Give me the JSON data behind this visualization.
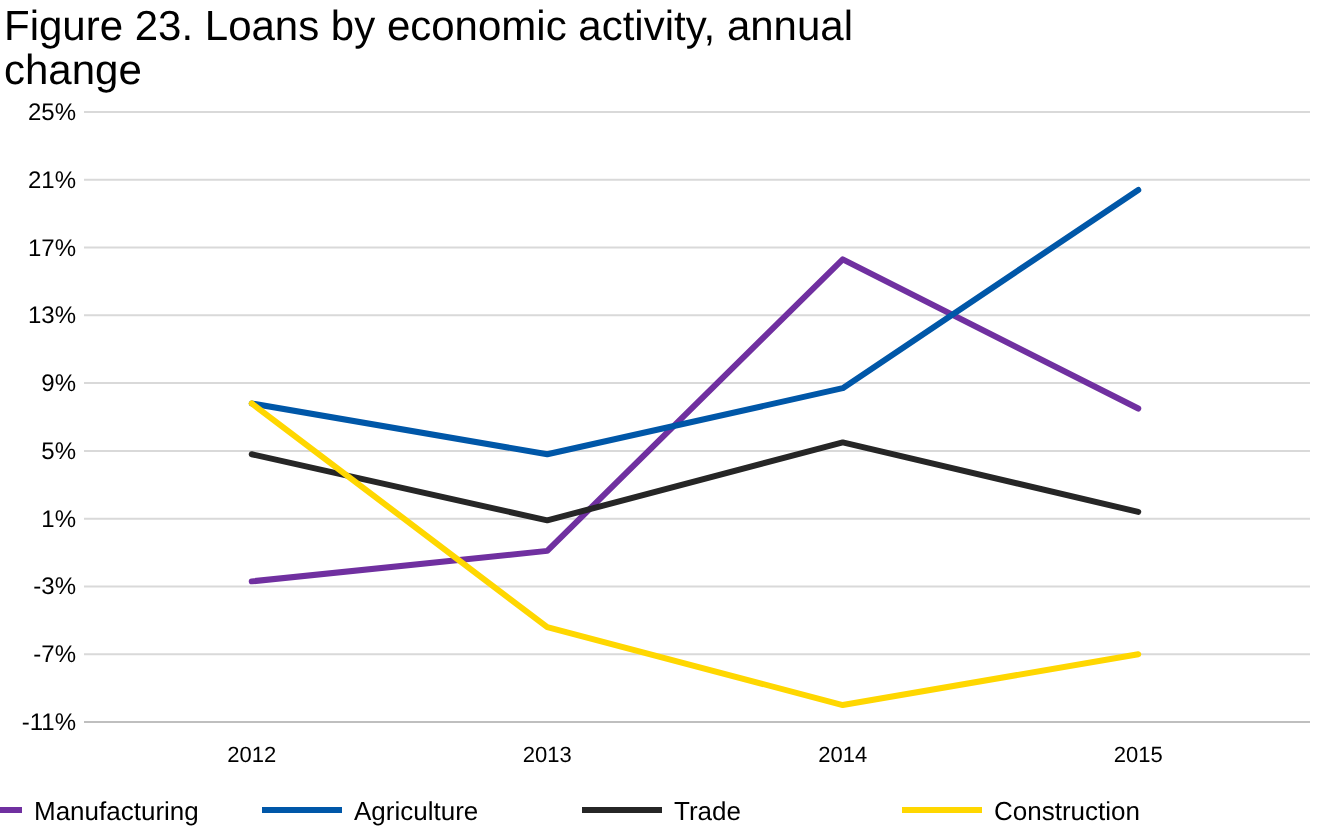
{
  "chart_data": {
    "type": "line",
    "title": "Figure 23. Loans by economic activity, annual change",
    "categories": [
      "2012",
      "2013",
      "2014",
      "2015"
    ],
    "series": [
      {
        "name": "Manufacturing",
        "color": "#7030a0",
        "values": [
          -2.7,
          -0.9,
          16.3,
          7.5
        ]
      },
      {
        "name": "Agriculture",
        "color": "#0057a8",
        "values": [
          7.8,
          4.8,
          8.7,
          20.4
        ]
      },
      {
        "name": "Trade",
        "color": "#262626",
        "values": [
          4.8,
          0.9,
          5.5,
          1.4
        ]
      },
      {
        "name": "Construction",
        "color": "#ffd700",
        "values": [
          7.8,
          -5.4,
          -10.0,
          -7.0
        ]
      }
    ],
    "ylim": [
      -11,
      25
    ],
    "yticks": [
      {
        "value": -11,
        "label": "-11%"
      },
      {
        "value": -7,
        "label": "-7%"
      },
      {
        "value": -3,
        "label": "-3%"
      },
      {
        "value": 1,
        "label": "1%"
      },
      {
        "value": 5,
        "label": "5%"
      },
      {
        "value": 9,
        "label": "9%"
      },
      {
        "value": 13,
        "label": "13%"
      },
      {
        "value": 17,
        "label": "17%"
      },
      {
        "value": 21,
        "label": "21%"
      },
      {
        "value": 25,
        "label": "25%"
      }
    ],
    "grid": "y",
    "legend": "bottom",
    "marker": "none",
    "line_style": "solid"
  }
}
